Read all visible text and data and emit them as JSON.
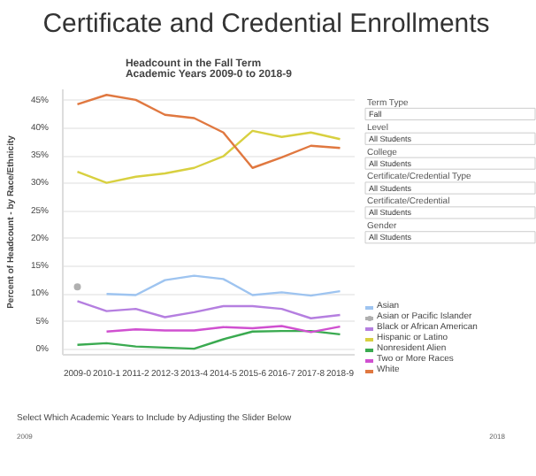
{
  "chart_data": {
    "type": "line",
    "title": "Certificate and Credential Enrollments",
    "subtitle": "Headcount in the Fall Term\nAcademic Years 2009-0 to 2018-9",
    "ylabel": "Percent of Headcount - by Race/Ethnicity",
    "categories": [
      "2009-0",
      "2010-1",
      "2011-2",
      "2012-3",
      "2013-4",
      "2014-5",
      "2015-6",
      "2016-7",
      "2017-8",
      "2018-9"
    ],
    "series": [
      {
        "name": "Asian",
        "color": "#9ec4f0",
        "values": [
          null,
          10.0,
          9.8,
          12.5,
          13.3,
          12.7,
          9.8,
          10.3,
          9.7,
          10.5
        ]
      },
      {
        "name": "Asian or Pacific Islander",
        "color": "#b0b0b0",
        "marker": "circle",
        "values": [
          11.3,
          null,
          null,
          null,
          null,
          null,
          null,
          null,
          null,
          null
        ]
      },
      {
        "name": "Black or African American",
        "color": "#b57fe0",
        "values": [
          8.7,
          6.9,
          7.3,
          5.8,
          6.7,
          7.8,
          7.8,
          7.3,
          5.6,
          6.2
        ]
      },
      {
        "name": "Hispanic or Latino",
        "color": "#d8d040",
        "values": [
          32.1,
          30.1,
          31.2,
          31.8,
          32.8,
          34.9,
          39.5,
          38.4,
          39.2,
          38.0
        ]
      },
      {
        "name": "Nonresident Alien",
        "color": "#3aaa50",
        "values": [
          0.8,
          1.1,
          0.5,
          0.3,
          0.1,
          1.8,
          3.2,
          3.3,
          3.3,
          2.7
        ]
      },
      {
        "name": "Two or More Races",
        "color": "#d050d0",
        "values": [
          null,
          3.2,
          3.6,
          3.4,
          3.4,
          4.0,
          3.8,
          4.2,
          3.1,
          4.1
        ]
      },
      {
        "name": "White",
        "color": "#e07840",
        "values": [
          44.3,
          46.0,
          45.1,
          42.4,
          41.8,
          39.2,
          32.8,
          34.7,
          36.8,
          36.4
        ]
      }
    ],
    "ylim": [
      -1,
      47
    ],
    "yticks": [
      {
        "value": 0,
        "label": "0%"
      },
      {
        "value": 5,
        "label": "5%"
      },
      {
        "value": 10,
        "label": "10%"
      },
      {
        "value": 15,
        "label": "15%"
      },
      {
        "value": 20,
        "label": "20%"
      },
      {
        "value": 25,
        "label": "25%"
      },
      {
        "value": 30,
        "label": "30%"
      },
      {
        "value": 35,
        "label": "35%"
      },
      {
        "value": 40,
        "label": "40%"
      },
      {
        "value": 45,
        "label": "45%"
      }
    ],
    "grid": "y",
    "legend": "right",
    "annotations": [
      "Term Type",
      "Fall",
      "Level",
      "All Students",
      "College",
      "All Students",
      "Certificate/Credential Type",
      "All Students",
      "Certificate/Credential",
      "All Students",
      "Gender",
      "All Students",
      "Select Which Academic Years to Include by Adjusting the Slider Below",
      "2009",
      "2018"
    ]
  }
}
